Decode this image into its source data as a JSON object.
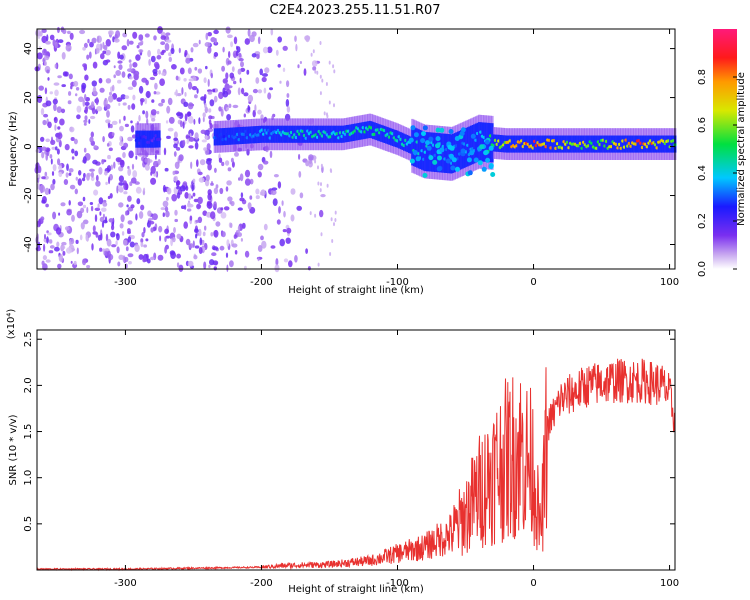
{
  "title": "C2E4.2023.255.11.51.R07",
  "colors": {
    "snr_line": "#e8312f",
    "frame": "#000000"
  },
  "chart_data": [
    {
      "type": "heatmap",
      "title": "C2E4.2023.255.11.51.R07",
      "xlabel": "Height of straight line (km)",
      "ylabel": "Frequency (Hz)",
      "xlim": [
        -365,
        104
      ],
      "ylim": [
        -50,
        48
      ],
      "xticks": [
        -300,
        -200,
        -100,
        0,
        100
      ],
      "xtick_labels": [
        "-300",
        "-200",
        "-100",
        "0",
        "100"
      ],
      "yticks": [
        -40,
        -20,
        0,
        20,
        40
      ],
      "ytick_labels": [
        "-40",
        "-20",
        "0",
        "20",
        "40"
      ],
      "colorbar": {
        "label": "Normalized spectral amplitude",
        "range": [
          0,
          1
        ],
        "ticks": [
          0.0,
          0.2,
          0.4,
          0.6,
          0.8
        ],
        "tick_labels": [
          "0.0",
          "0.2",
          "0.4",
          "0.6",
          "0.8"
        ]
      },
      "ridge": [
        {
          "x": -290,
          "f": 3,
          "amp": 0.25
        },
        {
          "x": -280,
          "f": 3,
          "amp": 0.2
        },
        {
          "x": -230,
          "f": 4,
          "amp": 0.3
        },
        {
          "x": -200,
          "f": 5,
          "amp": 0.35
        },
        {
          "x": -170,
          "f": 5,
          "amp": 0.45
        },
        {
          "x": -140,
          "f": 5,
          "amp": 0.45
        },
        {
          "x": -120,
          "f": 7,
          "amp": 0.5
        },
        {
          "x": -100,
          "f": 3,
          "amp": 0.45
        },
        {
          "x": -80,
          "f": -2,
          "amp": 0.4
        },
        {
          "x": -60,
          "f": -3,
          "amp": 0.35
        },
        {
          "x": -40,
          "f": 2,
          "amp": 0.35
        },
        {
          "x": -20,
          "f": 1,
          "amp": 0.7
        },
        {
          "x": 0,
          "f": 1,
          "amp": 0.85
        },
        {
          "x": 20,
          "f": 1,
          "amp": 0.7
        },
        {
          "x": 50,
          "f": 1,
          "amp": 0.6
        },
        {
          "x": 80,
          "f": 1,
          "amp": 0.85
        },
        {
          "x": 104,
          "f": 1,
          "amp": 0.6
        }
      ]
    },
    {
      "type": "line",
      "xlabel": "Height of straight line (km)",
      "ylabel": "SNR (10 * v/v)",
      "scale_label": "(x10⁴)",
      "xlim": [
        -365,
        104
      ],
      "ylim": [
        0,
        2.6
      ],
      "xticks": [
        -300,
        -200,
        -100,
        0,
        100
      ],
      "xtick_labels": [
        "-300",
        "-200",
        "-100",
        "0",
        "100"
      ],
      "yticks": [
        0.5,
        1.0,
        1.5,
        2.0,
        2.5
      ],
      "ytick_labels": [
        "0.5",
        "1.0",
        "1.5",
        "2.0",
        "2.5"
      ],
      "series": [
        {
          "x": [
            -365,
            -300,
            -250,
            -200,
            -180,
            -150,
            -120,
            -100,
            -80,
            -60,
            -50,
            -40,
            -30,
            -20,
            -10,
            0,
            5,
            8,
            10,
            20,
            40,
            60,
            80,
            95,
            100,
            104
          ],
          "y": [
            0.01,
            0.01,
            0.02,
            0.03,
            0.05,
            0.06,
            0.1,
            0.18,
            0.25,
            0.4,
            0.6,
            0.85,
            1.05,
            1.2,
            1.3,
            1.1,
            0.4,
            0.95,
            1.55,
            1.85,
            2.0,
            2.05,
            2.05,
            2.0,
            1.9,
            1.6
          ]
        }
      ]
    }
  ]
}
